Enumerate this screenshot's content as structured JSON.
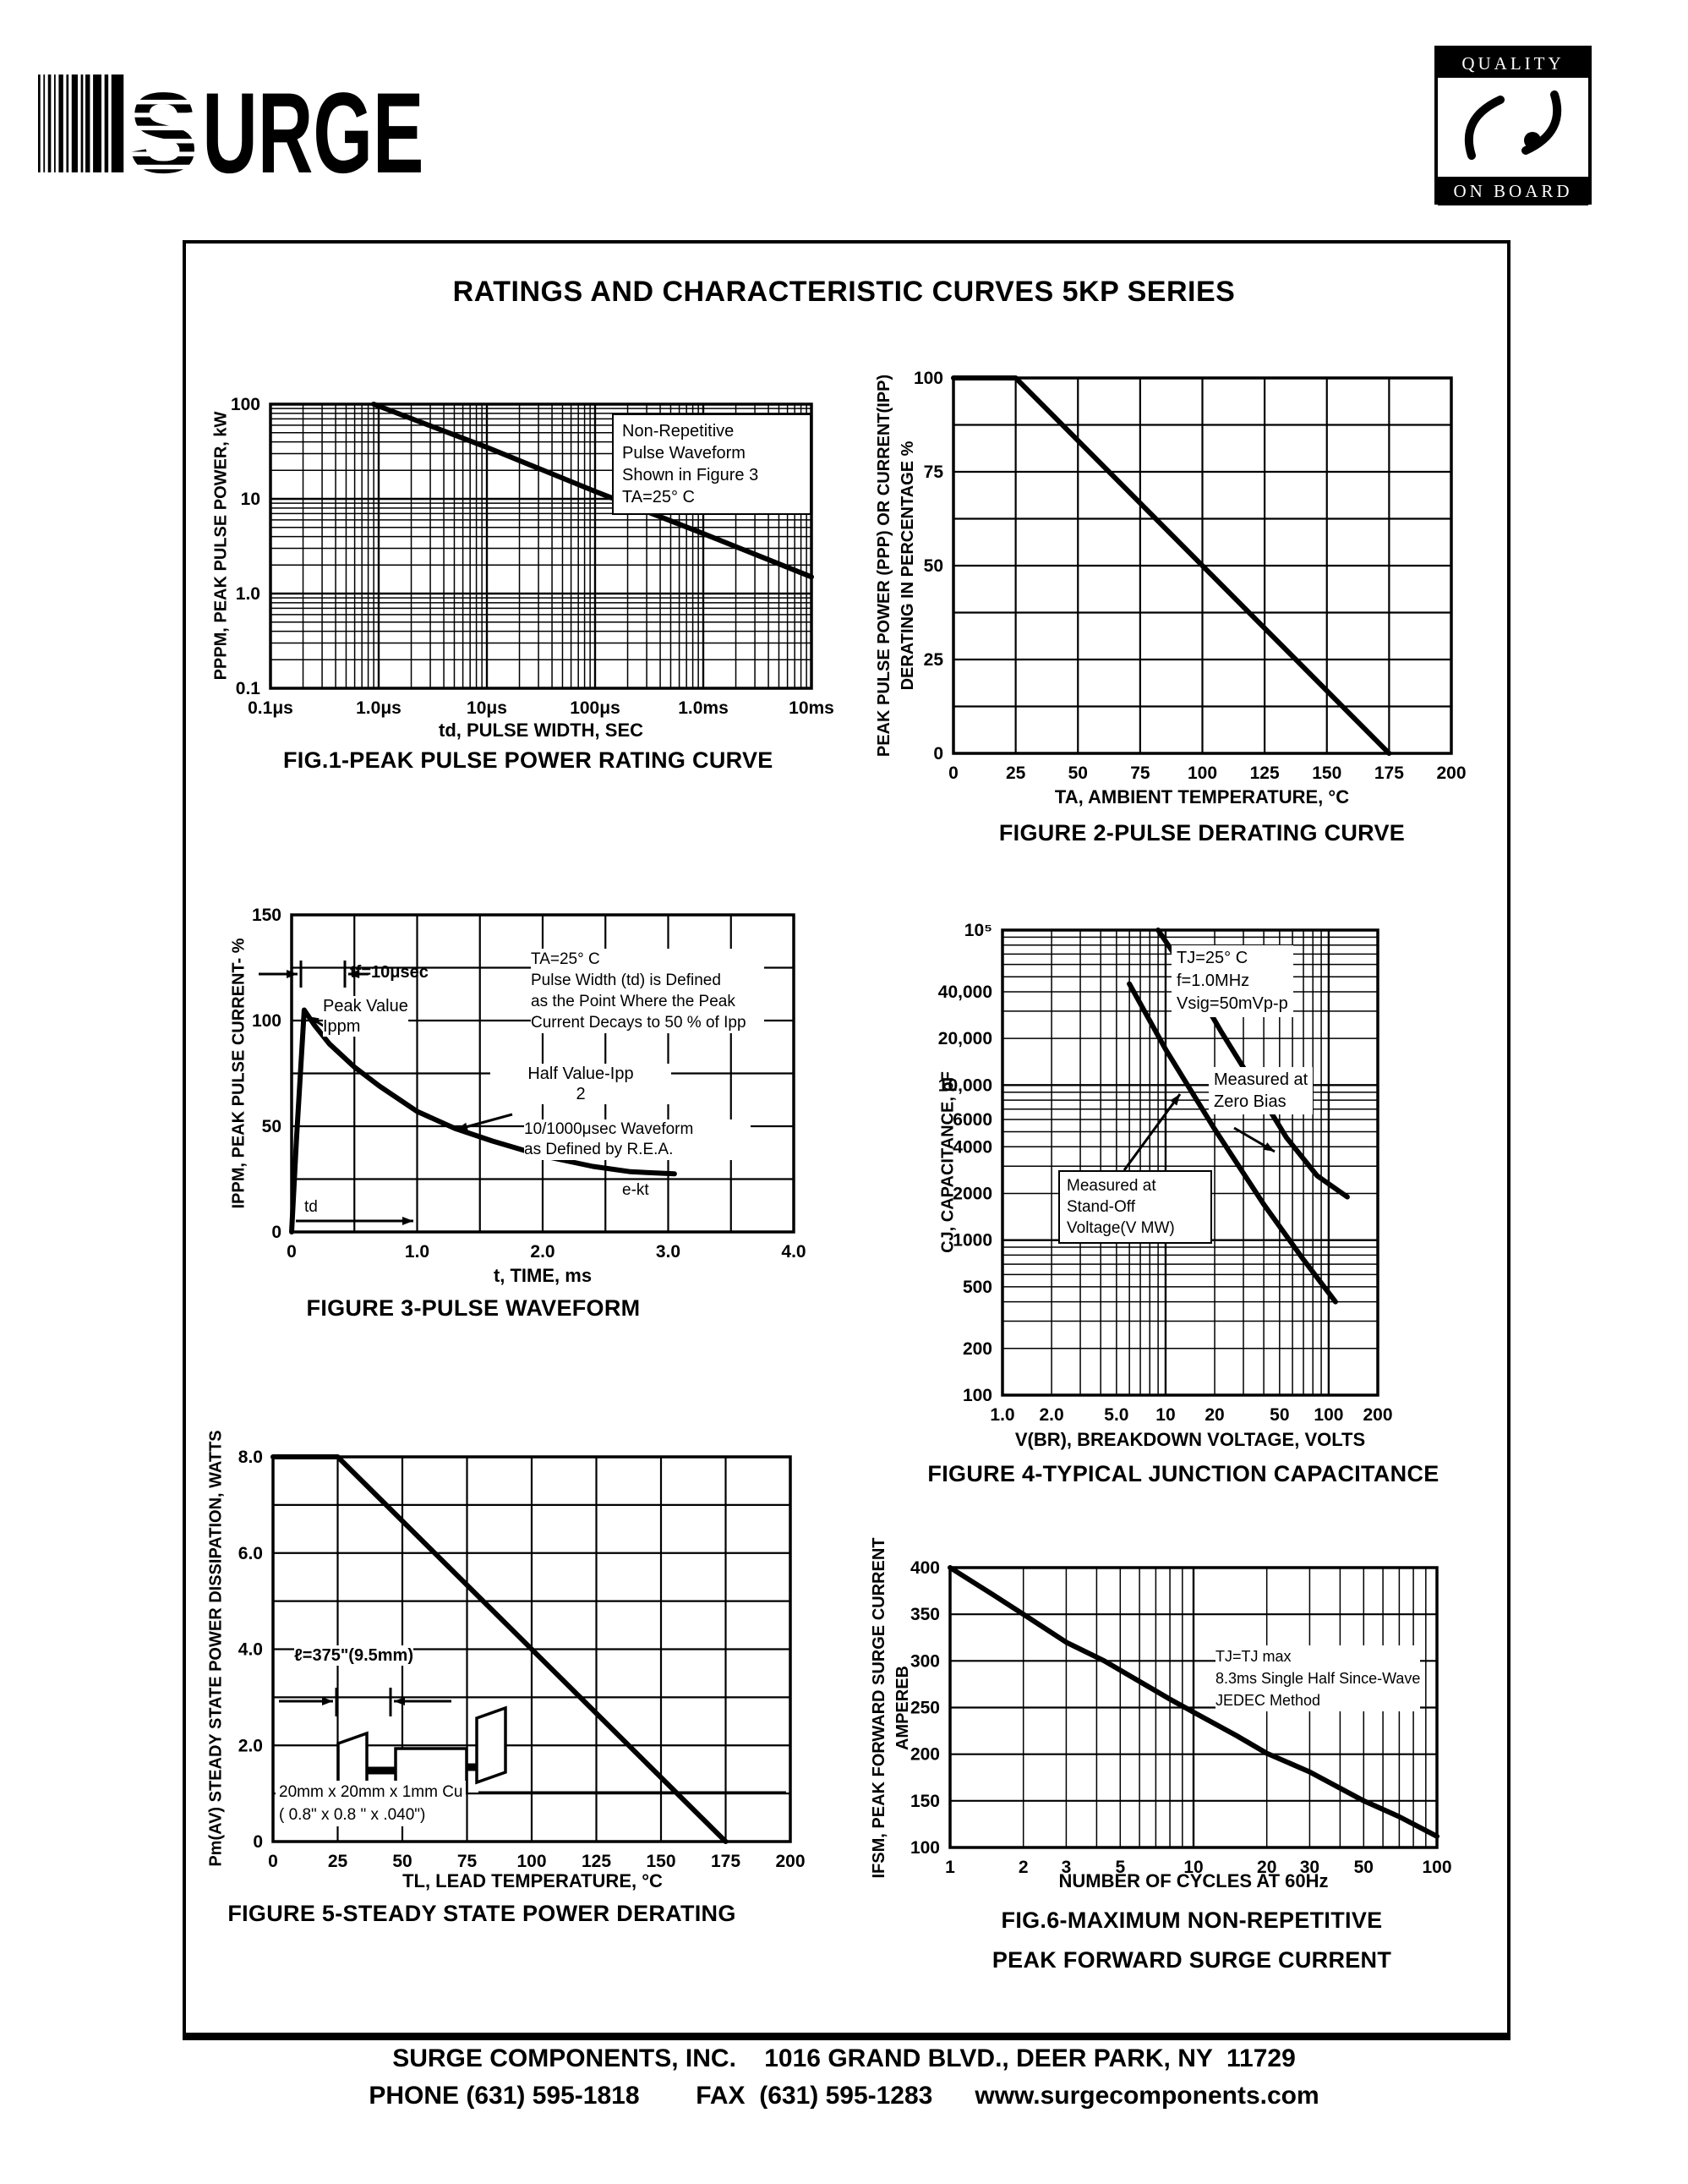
{
  "page": {
    "title": "RATINGS AND CHARACTERISTIC CURVES 5KP SERIES",
    "logo": {
      "brand_s": "S",
      "brand_rest": "URGE",
      "quality_top": "QUALITY",
      "quality_bottom": "ON BOARD"
    },
    "footer_line1": "SURGE COMPONENTS, INC.    1016 GRAND BLVD., DEER PARK, NY  11729",
    "footer_line2": "PHONE (631) 595-1818        FAX  (631) 595-1283      www.surgecomponents.com"
  },
  "chart_data": [
    {
      "id": "fig1",
      "type": "line",
      "title": "FIG.1-PEAK PULSE POWER RATING CURVE",
      "xlabel": "td, PULSE WIDTH, SEC",
      "ylabel": "PPPM, PEAK PULSE POWER, kW",
      "xscale": "log",
      "yscale": "log",
      "grid": true,
      "xlim": [
        1e-07,
        0.01
      ],
      "ylim": [
        0.1,
        100
      ],
      "xticks": [
        {
          "v": 1e-07,
          "label": "0.1μs"
        },
        {
          "v": 1e-06,
          "label": "1.0μs"
        },
        {
          "v": 1e-05,
          "label": "10μs"
        },
        {
          "v": 0.0001,
          "label": "100μs"
        },
        {
          "v": 0.001,
          "label": "1.0ms"
        },
        {
          "v": 0.01,
          "label": "10ms"
        }
      ],
      "yticks": [
        {
          "v": 100,
          "label": "100"
        },
        {
          "v": 10,
          "label": "10"
        },
        {
          "v": 1,
          "label": "1.0"
        },
        {
          "v": 0.1,
          "label": "0.1"
        }
      ],
      "series": [
        {
          "name": "non-repetitive peak pulse power",
          "points": [
            [
              9e-07,
              100
            ],
            [
              1e-05,
              35
            ],
            [
              0.0001,
              12
            ],
            [
              0.001,
              4.3
            ],
            [
              0.01,
              1.5
            ]
          ]
        }
      ],
      "annotation": "Non-Repetitive\nPulse Waveform\nShown in Figure 3\nTA=25° C"
    },
    {
      "id": "fig2",
      "type": "line",
      "title": "FIGURE 2-PULSE DERATING CURVE",
      "xlabel": "TA, AMBIENT  TEMPERATURE, °C",
      "ylabel": "PEAK PULSE POWER (PPP) OR CURRENT(IPP)\nDERATING IN PERCENTAGE %",
      "xscale": "linear",
      "yscale": "linear",
      "grid": true,
      "xlim": [
        0,
        200
      ],
      "ylim": [
        0,
        100
      ],
      "xticks": [
        {
          "v": 0,
          "label": "0"
        },
        {
          "v": 25,
          "label": "25"
        },
        {
          "v": 50,
          "label": "50"
        },
        {
          "v": 75,
          "label": "75"
        },
        {
          "v": 100,
          "label": "100"
        },
        {
          "v": 125,
          "label": "125"
        },
        {
          "v": 150,
          "label": "150"
        },
        {
          "v": 175,
          "label": "175"
        },
        {
          "v": 200,
          "label": "200"
        }
      ],
      "yticks": [
        {
          "v": 0,
          "label": "0"
        },
        {
          "v": 25,
          "label": "25"
        },
        {
          "v": 50,
          "label": "50"
        },
        {
          "v": 75,
          "label": "75"
        },
        {
          "v": 100,
          "label": "100"
        }
      ],
      "series": [
        {
          "name": "pulse derating",
          "points": [
            [
              0,
              100
            ],
            [
              25,
              100
            ],
            [
              175,
              0
            ]
          ]
        }
      ]
    },
    {
      "id": "fig3",
      "type": "line",
      "title": "FIGURE 3-PULSE WAVEFORM",
      "xlabel": "t, TIME, ms",
      "ylabel": "IPPM, PEAK PULSE CURRENT- %",
      "xscale": "linear",
      "yscale": "linear",
      "grid": true,
      "xlim": [
        0,
        4
      ],
      "ylim": [
        0,
        150
      ],
      "xticks": [
        {
          "v": 0,
          "label": "0"
        },
        {
          "v": 1,
          "label": "1.0"
        },
        {
          "v": 2,
          "label": "2.0"
        },
        {
          "v": 3,
          "label": "3.0"
        },
        {
          "v": 4,
          "label": "4.0"
        }
      ],
      "yticks": [
        {
          "v": 0,
          "label": "0"
        },
        {
          "v": 50,
          "label": "50"
        },
        {
          "v": 100,
          "label": "100"
        },
        {
          "v": 150,
          "label": "150"
        }
      ],
      "series": [
        {
          "name": "10/1000μsec pulse waveform",
          "points": [
            [
              0,
              0
            ],
            [
              0.04,
              45
            ],
            [
              0.1,
              105
            ],
            [
              0.18,
              98
            ],
            [
              0.3,
              89
            ],
            [
              0.5,
              78
            ],
            [
              0.7,
              69
            ],
            [
              1.0,
              57
            ],
            [
              1.3,
              49
            ],
            [
              1.6,
              43
            ],
            [
              2.0,
              36
            ],
            [
              2.4,
              31
            ],
            [
              2.7,
              28.5
            ],
            [
              3.05,
              27.5
            ]
          ]
        }
      ],
      "annotations": {
        "tf": "tf=10μsec",
        "peak": "Peak Value\nIppm",
        "half": "Half Value-Ipp\n2",
        "cond": "TA=25° C\nPulse Width (td) is Defined\nas the Point Where the Peak\nCurrent Decays to 50 % of Ipp",
        "wave": "10/1000μsec Waveform\nas Defined by R.E.A.",
        "ekt": "e-kt",
        "td": "td"
      }
    },
    {
      "id": "fig4",
      "type": "line",
      "title": "FIGURE 4-TYPICAL JUNCTION CAPACITANCE",
      "xlabel": "V(BR), BREAKDOWN VOLTAGE, VOLTS",
      "ylabel": "CJ, CAPACITANCE, pF",
      "xscale": "log",
      "yscale": "log",
      "grid": true,
      "xlim": [
        1,
        200
      ],
      "ylim": [
        100,
        100000
      ],
      "xticks": [
        {
          "v": 1,
          "label": "1.0"
        },
        {
          "v": 2,
          "label": "2.0"
        },
        {
          "v": 5,
          "label": "5.0"
        },
        {
          "v": 10,
          "label": "10"
        },
        {
          "v": 20,
          "label": "20"
        },
        {
          "v": 50,
          "label": "50"
        },
        {
          "v": 100,
          "label": "100"
        },
        {
          "v": 200,
          "label": "200"
        }
      ],
      "yticks": [
        {
          "v": 100000,
          "label": "10⁵"
        },
        {
          "v": 40000,
          "label": "40,000"
        },
        {
          "v": 20000,
          "label": "20,000"
        },
        {
          "v": 10000,
          "label": "10,000"
        },
        {
          "v": 6000,
          "label": "6000"
        },
        {
          "v": 4000,
          "label": "4000"
        },
        {
          "v": 2000,
          "label": "2000"
        },
        {
          "v": 1000,
          "label": "1000"
        },
        {
          "v": 500,
          "label": "500"
        },
        {
          "v": 200,
          "label": "200"
        },
        {
          "v": 100,
          "label": "100"
        }
      ],
      "series": [
        {
          "name": "Measured at Zero Bias",
          "points": [
            [
              9,
              100000
            ],
            [
              14,
              50000
            ],
            [
              22,
              22000
            ],
            [
              35,
              10000
            ],
            [
              55,
              4600
            ],
            [
              85,
              2600
            ],
            [
              130,
              1900
            ]
          ]
        },
        {
          "name": "Measured at Stand-Off Voltage",
          "points": [
            [
              6,
              45000
            ],
            [
              10,
              17000
            ],
            [
              20,
              5200
            ],
            [
              40,
              1700
            ],
            [
              70,
              750
            ],
            [
              110,
              400
            ]
          ]
        }
      ],
      "annotations": {
        "cond": "TJ=25° C\nf=1.0MHz\nVsig=50mVp-p",
        "zero": "Measured at\nZero Bias",
        "standoff": "Measured at\nStand-Off\nVoltage(V MW)"
      }
    },
    {
      "id": "fig5",
      "type": "line",
      "title": "FIGURE 5-STEADY STATE POWER DERATING",
      "xlabel": "TL, LEAD  TEMPERATURE, °C",
      "ylabel": "Pm(AV) STEADY STATE POWER DISSIPATION, WATTS",
      "xscale": "linear",
      "yscale": "linear",
      "grid": true,
      "xlim": [
        0,
        200
      ],
      "ylim": [
        0,
        8
      ],
      "xticks": [
        {
          "v": 0,
          "label": "0"
        },
        {
          "v": 25,
          "label": "25"
        },
        {
          "v": 50,
          "label": "50"
        },
        {
          "v": 75,
          "label": "75"
        },
        {
          "v": 100,
          "label": "100"
        },
        {
          "v": 125,
          "label": "125"
        },
        {
          "v": 150,
          "label": "150"
        },
        {
          "v": 175,
          "label": "175"
        },
        {
          "v": 200,
          "label": "200"
        }
      ],
      "yticks": [
        {
          "v": 0,
          "label": "0"
        },
        {
          "v": 2,
          "label": "2.0"
        },
        {
          "v": 4,
          "label": "4.0"
        },
        {
          "v": 6,
          "label": "6.0"
        },
        {
          "v": 8,
          "label": "8.0"
        }
      ],
      "series": [
        {
          "name": "steady state power",
          "points": [
            [
              0,
              8
            ],
            [
              25,
              8
            ],
            [
              175,
              0
            ]
          ]
        }
      ],
      "annotations": {
        "lead": "ℓ=375\"(9.5mm)",
        "cu": "20mm x 20mm x 1mm Cu\n( 0.8\" x  0.8 \" x .040\")"
      }
    },
    {
      "id": "fig6",
      "type": "line",
      "title": "FIG.6-MAXIMUM NON-REPETITIVE\nPEAK FORWARD SURGE CURRENT",
      "xlabel": "NUMBER  OF  CYCLES  AT  60Hz",
      "ylabel": "IFSM, PEAK FORWARD SURGE CURRENT\nAMPEREB",
      "xscale": "log",
      "yscale": "linear",
      "grid": true,
      "xlim": [
        1,
        100
      ],
      "ylim": [
        100,
        400
      ],
      "xticks": [
        {
          "v": 1,
          "label": "1"
        },
        {
          "v": 2,
          "label": "2"
        },
        {
          "v": 3,
          "label": "3"
        },
        {
          "v": 5,
          "label": "5"
        },
        {
          "v": 10,
          "label": "10"
        },
        {
          "v": 20,
          "label": "20"
        },
        {
          "v": 30,
          "label": "30"
        },
        {
          "v": 50,
          "label": "50"
        },
        {
          "v": 100,
          "label": "100"
        }
      ],
      "yticks": [
        {
          "v": 100,
          "label": "100"
        },
        {
          "v": 150,
          "label": "150"
        },
        {
          "v": 200,
          "label": "200"
        },
        {
          "v": 250,
          "label": "250"
        },
        {
          "v": 300,
          "label": "300"
        },
        {
          "v": 350,
          "label": "350"
        },
        {
          "v": 400,
          "label": "400"
        }
      ],
      "series": [
        {
          "name": "peak forward surge current",
          "points": [
            [
              1,
              400
            ],
            [
              1.5,
              371
            ],
            [
              2,
              350
            ],
            [
              3,
              320
            ],
            [
              4.3,
              300
            ],
            [
              6,
              278
            ],
            [
              8,
              259
            ],
            [
              10,
              245
            ],
            [
              15,
              220
            ],
            [
              20,
              201
            ],
            [
              30,
              181
            ],
            [
              50,
              150
            ],
            [
              70,
              133
            ],
            [
              100,
              112
            ]
          ]
        }
      ],
      "annotations": {
        "cond": "TJ=TJ max\n8.3ms Single Half Since-Wave\nJEDEC Method"
      }
    }
  ]
}
